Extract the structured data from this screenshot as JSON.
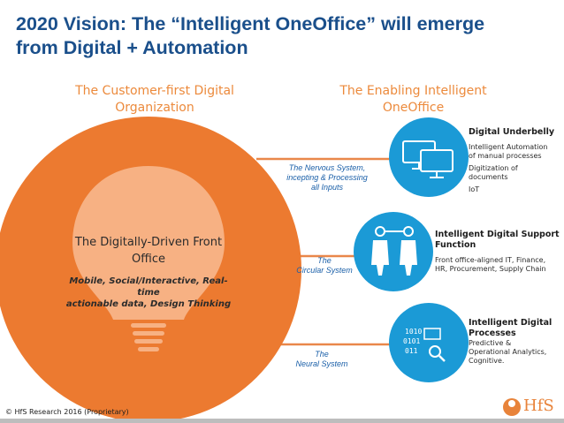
{
  "title_line1": "2020 Vision: The “Intelligent OneOffice” will emerge",
  "title_line2": "from Digital + Automation",
  "left_heading_line1": "The Customer-first Digital",
  "left_heading_line2": "Organization",
  "right_heading_line1": "The Enabling Intelligent",
  "right_heading_line2": "OneOffice",
  "bulb": {
    "title_line1": "The Digitally-Driven Front",
    "title_line2": "Office",
    "subtitle_line1": "Mobile, Social/Interactive, Real-time",
    "subtitle_line2": "actionable data, Design Thinking"
  },
  "connectors": [
    {
      "line1": "The Nervous System,",
      "line2": "incepting  & Processing",
      "line3": "all Inputs"
    },
    {
      "line1": "The",
      "line2": "Circular System",
      "line3": ""
    },
    {
      "line1": "The",
      "line2": "Neural System",
      "line3": ""
    }
  ],
  "sections": [
    {
      "icon": "monitors-icon",
      "title": "Digital Underbelly",
      "items": [
        "Intelligent Automation",
        "of manual processes",
        "Digitization of",
        "documents",
        "IoT"
      ]
    },
    {
      "icon": "people-connected-icon",
      "title_line1": "Intelligent Digital Support",
      "title_line2": "Function",
      "items": [
        "Front office-aligned IT, Finance,",
        "HR, Procurement, Supply Chain"
      ]
    },
    {
      "icon": "binary-analytics-icon",
      "title_line1": "Intelligent Digital",
      "title_line2": "Processes",
      "items": [
        "Predictive &",
        "Operational Analytics,",
        "Cognitive."
      ]
    }
  ],
  "footer": "© HfS Research 2016 (Proprietary)",
  "logo_text": "HfS",
  "colors": {
    "title_blue": "#1a4f8b",
    "heading_orange": "#ec8a3c",
    "circle_orange": "#ec7a30",
    "bulb_peach": "#f7b183",
    "icon_blue": "#1b9ad6",
    "connector_orange": "#e9874a"
  }
}
